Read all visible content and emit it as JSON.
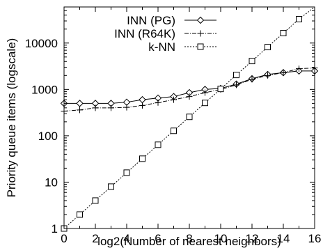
{
  "chart_data": {
    "type": "line",
    "xlabel": "log2(Number of nearest neighbors)",
    "ylabel": "Priority queue items (logscale)",
    "xlim": [
      0,
      16
    ],
    "ylim": [
      1,
      60000
    ],
    "yscale": "log",
    "grid": false,
    "legend_position": "top-left",
    "x_ticks": [
      0,
      2,
      4,
      6,
      8,
      10,
      12,
      14,
      16
    ],
    "x_tick_labels": [
      "0",
      "2",
      "4",
      "6",
      "8",
      "10",
      "12",
      "14",
      "16"
    ],
    "y_ticks": [
      1,
      10,
      100,
      1000,
      10000
    ],
    "y_tick_labels": [
      "1",
      "10",
      "100",
      "1000",
      "10000"
    ],
    "x": [
      0,
      1,
      2,
      3,
      4,
      5,
      6,
      7,
      8,
      9,
      10,
      11,
      12,
      13,
      14,
      15,
      16
    ],
    "series": [
      {
        "name": "INN (PG)",
        "marker": "diamond",
        "line": "solid",
        "values": [
          500,
          500,
          500,
          500,
          530,
          600,
          650,
          700,
          850,
          1000,
          1050,
          1300,
          1700,
          2100,
          2300,
          2500,
          2500
        ]
      },
      {
        "name": "INN (R64K)",
        "marker": "plus",
        "line": "dashdot",
        "values": [
          340,
          360,
          400,
          400,
          410,
          450,
          520,
          600,
          700,
          850,
          1000,
          1250,
          1650,
          2000,
          2300,
          2800,
          2900
        ]
      },
      {
        "name": "k-NN",
        "marker": "square",
        "line": "dotted",
        "values": [
          1,
          2,
          4,
          8,
          16,
          32,
          64,
          128,
          256,
          512,
          1024,
          2048,
          4096,
          8192,
          16384,
          32768,
          65536
        ]
      }
    ]
  }
}
